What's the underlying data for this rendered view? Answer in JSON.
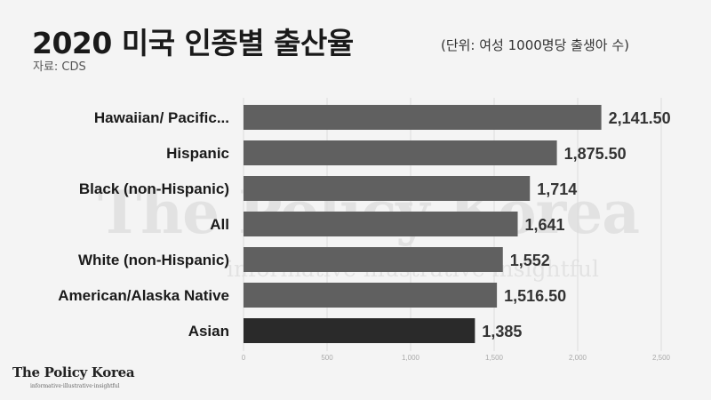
{
  "header": {
    "title": "2020 미국 인종별 출산율",
    "unit": "(단위: 여성 1000명당 출생아 수)",
    "source": "자료: CDS"
  },
  "brand": {
    "watermark": "The Policy Korea",
    "watermark_tagline": "informative·illustrative·insightful",
    "logo": "The Policy Korea",
    "logo_tagline": "informative·illustrative·insightful"
  },
  "colors": {
    "bar": "#606060",
    "bar_highlight": "#2a2a2a",
    "background": "#f4f4f4"
  },
  "chart_data": {
    "type": "bar",
    "orientation": "horizontal",
    "title": "2020 미국 인종별 출산율",
    "categories": [
      "Hawaiian/ Pacific...",
      "Hispanic",
      "Black (non-Hispanic)",
      "All",
      "White (non-Hispanic)",
      "American/Alaska Native",
      "Asian"
    ],
    "values": [
      2141.5,
      1875.5,
      1714,
      1641,
      1552,
      1516.5,
      1385
    ],
    "value_labels": [
      "2,141.50",
      "1,875.50",
      "1,714",
      "1,641",
      "1,552",
      "1,516.50",
      "1,385"
    ],
    "highlight_index": 6,
    "xlim": [
      0,
      2500
    ],
    "ticks": [
      0,
      500,
      1000,
      1500,
      2000,
      2500
    ],
    "tick_labels": [
      "0",
      "500",
      "1,000",
      "1,500",
      "2,000",
      "2,500"
    ],
    "grid": true
  }
}
